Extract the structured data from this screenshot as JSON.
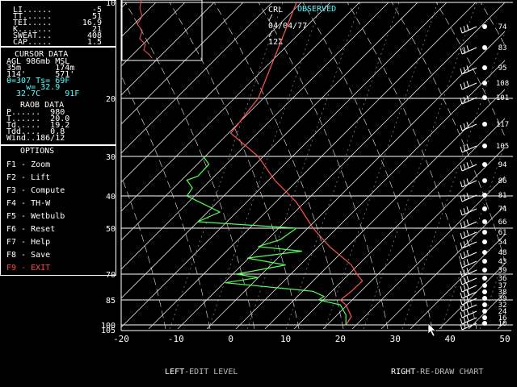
{
  "title": {
    "station": "CRL",
    "sep1": "/",
    "date": "04/04/77",
    "sep2": "/",
    "time": "12Z",
    "mode": "OBSERVED"
  },
  "indices": [
    {
      "label": "LI......",
      "value": "-5"
    },
    {
      "label": "TT......",
      "value": "51"
    },
    {
      "label": "TEI.....",
      "value": "16.9"
    },
    {
      "label": "K.......",
      "value": "21"
    },
    {
      "label": "SWEAT...",
      "value": "408"
    },
    {
      "label": "CAP.....",
      "value": "1.5"
    }
  ],
  "cursor": {
    "header": "CURSOR DATA",
    "row1": "AGL 986mb MSL",
    "row2": "35m       174m",
    "row3": "114'      571'",
    "row4": "θ=307 Ts= 69F",
    "row5": "    w= 32.9",
    "row6": "  32.7C     91F"
  },
  "raob": {
    "header": "RAOB DATA",
    "rows": [
      "P......  980",
      "T......  20.0",
      "Td.....  19.2",
      "Tdd....  0.8",
      "Wind..186/12"
    ]
  },
  "options": {
    "header": "OPTIONS",
    "items": [
      {
        "key": "F1",
        "label": "Zoom"
      },
      {
        "key": "F2",
        "label": "Lift"
      },
      {
        "key": "F3",
        "label": "Compute"
      },
      {
        "key": "F4",
        "label": "TH-W"
      },
      {
        "key": "F5",
        "label": "Wetbulb"
      },
      {
        "key": "F6",
        "label": "Reset"
      },
      {
        "key": "F7",
        "label": "Help"
      },
      {
        "key": "F8",
        "label": "Save"
      },
      {
        "key": "F9",
        "label": "EXIT"
      }
    ]
  },
  "footer": {
    "left_key": "LEFT",
    "left_text": "-EDIT LEVEL",
    "right_key": "RIGHT",
    "right_text": "-RE-DRAW CHART"
  },
  "colors": {
    "temperature": "#ff5555",
    "dewpoint": "#55ff55",
    "grid": "#ffffff",
    "exit": "#ff4444",
    "observed": "#55ffff"
  },
  "chart_data": {
    "type": "line",
    "x_label_ticks": [
      "-20",
      "-10",
      "0",
      "10",
      "20",
      "30",
      "40",
      "50"
    ],
    "x_values": [
      -20,
      -10,
      0,
      10,
      20,
      30,
      40,
      50
    ],
    "pressure_ticks": [
      "10",
      "20",
      "30",
      "40",
      "50",
      "70",
      "85",
      "100",
      "105"
    ],
    "pressure_values": [
      10,
      20,
      30,
      40,
      50,
      70,
      85,
      100,
      105
    ],
    "series": [
      {
        "id": "temperature",
        "points": [
          [
            12,
            10
          ],
          [
            5,
            20
          ],
          [
            0,
            26
          ],
          [
            5,
            30
          ],
          [
            8,
            36
          ],
          [
            12,
            42
          ],
          [
            15,
            50
          ],
          [
            18,
            58
          ],
          [
            22,
            66
          ],
          [
            23,
            70
          ],
          [
            24,
            74
          ],
          [
            22,
            80
          ],
          [
            20,
            85
          ],
          [
            21,
            88
          ],
          [
            22,
            95
          ],
          [
            21,
            100
          ]
        ]
      },
      {
        "id": "dewpoint",
        "points": [
          [
            -5,
            30
          ],
          [
            -4,
            32
          ],
          [
            -6,
            35
          ],
          [
            -8,
            36
          ],
          [
            -7,
            38
          ],
          [
            -8,
            40
          ],
          [
            -2,
            45
          ],
          [
            -6,
            48
          ],
          [
            12,
            50
          ],
          [
            9,
            55
          ],
          [
            5,
            58
          ],
          [
            13,
            60
          ],
          [
            3,
            63
          ],
          [
            10,
            66
          ],
          [
            1,
            70
          ],
          [
            5,
            72
          ],
          [
            -1,
            75
          ],
          [
            15,
            80
          ],
          [
            17,
            83
          ],
          [
            16,
            85
          ],
          [
            20,
            88
          ],
          [
            21,
            94
          ],
          [
            21,
            100
          ]
        ]
      }
    ],
    "wind_speed_labels": [
      "74",
      "83",
      "95",
      "108",
      "101",
      "117",
      "105",
      "94",
      "86",
      "81",
      "74",
      "66",
      "61",
      "54",
      "48",
      "43",
      "39",
      "36",
      "37",
      "38",
      "39",
      "32",
      "24",
      "16",
      "10"
    ]
  }
}
